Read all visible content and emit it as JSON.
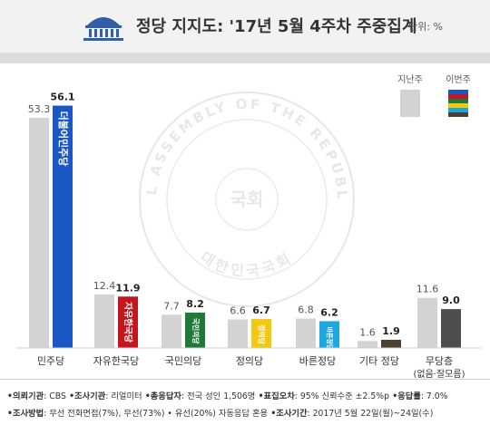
{
  "header": {
    "title": "정당 지지도: '17년 5월 4주차 주중집계",
    "unit": "단위: %"
  },
  "legend": {
    "previous": "지난주",
    "current": "이번주",
    "placement": "top-right"
  },
  "watermark": {
    "ring_text": "THE NATIONAL ASSEMBLY OF THE REPUBLIC OF KOREA",
    "center_text": "국회",
    "bottom_text": "대한민국국회"
  },
  "chart_data": {
    "type": "bar",
    "title": "정당 지지도: '17년 5월 4주차 주중집계",
    "xlabel": "",
    "ylabel": "",
    "ylim": [
      0,
      60
    ],
    "grid": false,
    "categories": [
      "민주당",
      "자유한국당",
      "국민의당",
      "정의당",
      "바른정당",
      "기타 정당",
      "무당층"
    ],
    "category_sublabels": [
      "",
      "",
      "",
      "",
      "",
      "",
      "(없음·잘모름)"
    ],
    "series": [
      {
        "name": "지난주",
        "values": [
          53.3,
          12.4,
          7.7,
          6.6,
          6.8,
          1.6,
          11.6
        ]
      },
      {
        "name": "이번주",
        "values": [
          56.1,
          11.9,
          8.2,
          6.7,
          6.2,
          1.9,
          9.0
        ]
      }
    ],
    "value_labels_prev": [
      "53.3",
      "12.4",
      "7.7",
      "6.6",
      "6.8",
      "1.6",
      "11.6"
    ],
    "value_labels_curr": [
      "56.1",
      "11.9",
      "8.2",
      "6.7",
      "6.2",
      "1.9",
      "9.0"
    ],
    "colors": {
      "previous": "#d3d3d3",
      "current": [
        "#1a56c4",
        "#c4161c",
        "#1f7a3a",
        "#f2c811",
        "#1ea6e0",
        "#4a4133",
        "#4d4d4d"
      ]
    },
    "bar_logo_text": [
      "더불어민주당",
      "자유한국당",
      "국민의당",
      "정의당",
      "바른정당",
      "",
      ""
    ],
    "bar_logo_text_colors": [
      "#ffffff",
      "#ffffff",
      "#ffffff",
      "#ffffff",
      "#ffffff",
      "#ffffff",
      "#ffffff"
    ]
  },
  "footer": {
    "line1": [
      {
        "label": "•의뢰기관",
        "value": ": CBS"
      },
      {
        "label": " •조사기관",
        "value": ": 리얼미터"
      },
      {
        "label": " •총응답자",
        "value": ": 전국 성인 1,506명"
      },
      {
        "label": " •표집오차",
        "value": ": 95% 신뢰수준 ±2.5%p"
      },
      {
        "label": " •응답률",
        "value": ": 7.0%"
      }
    ],
    "line2": [
      {
        "label": "•조사방법",
        "value": ": 무선 전화면접(7%), 무선(73%) • 유선(20%) 자동응답 혼용"
      },
      {
        "label": "  •조사기간",
        "value": ": 2017년 5월 22일(월)~24일(수)"
      }
    ]
  }
}
